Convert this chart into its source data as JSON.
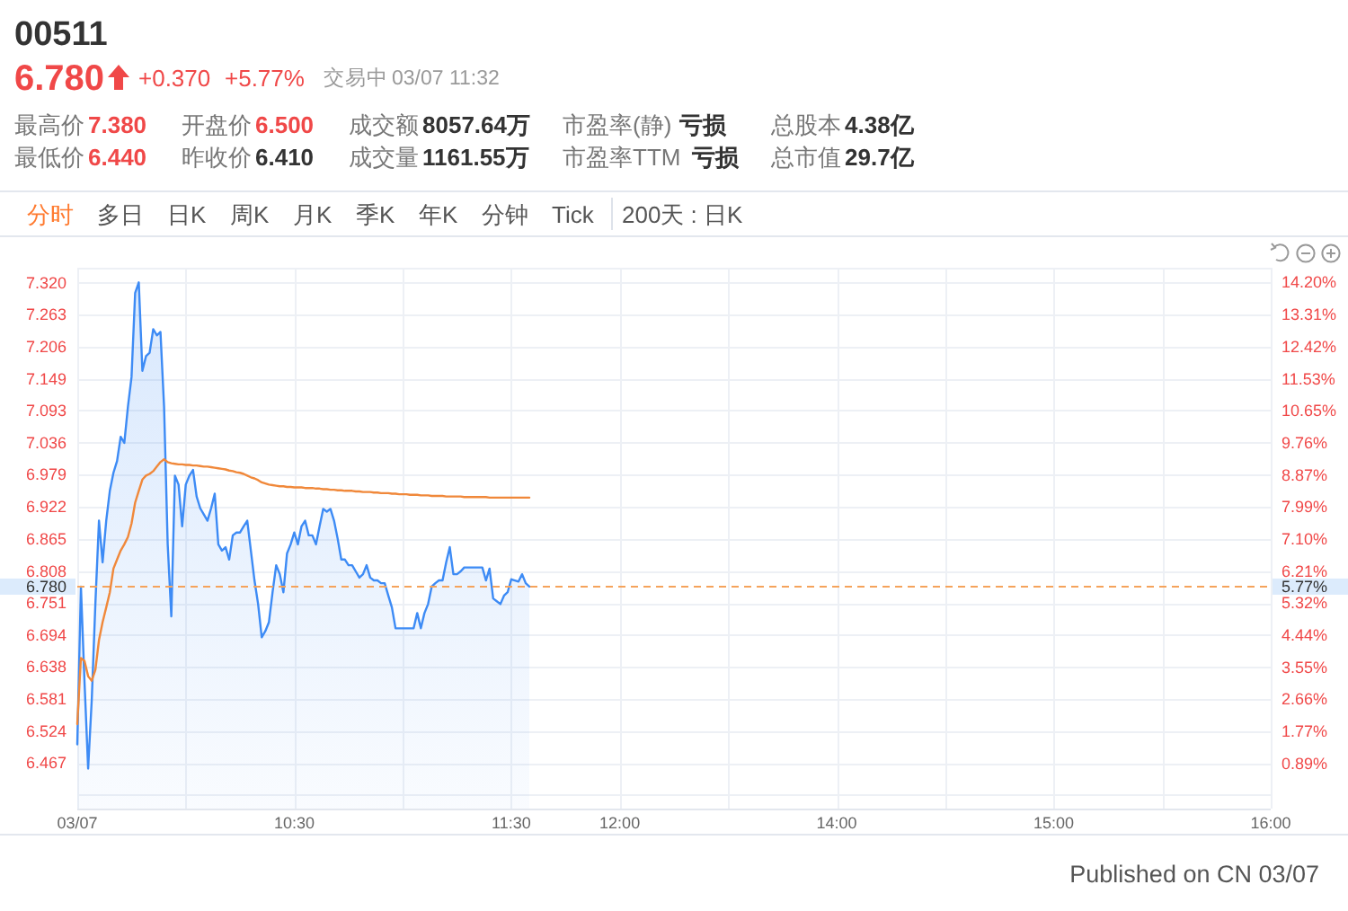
{
  "chart_data": {
    "type": "line",
    "title": "00511",
    "subtitle": "6.780",
    "annotations": [
      "+0.370",
      "+5.77%",
      "交易中",
      "03/07 11:32",
      "最高价",
      "7.380",
      "开盘价",
      "6.500",
      "成交额",
      "8057.64万",
      "市盈率(静)",
      "亏损",
      "总股本",
      "4.38亿",
      "最低价",
      "6.440",
      "昨收价",
      "6.410",
      "成交量",
      "1161.55万",
      "市盈率TTM",
      "亏损",
      "总市值",
      "29.7亿",
      "分时",
      "多日",
      "日K",
      "周K",
      "月K",
      "季K",
      "年K",
      "分钟",
      "Tick",
      "200天 : 日K",
      "Published on CN 03/07",
      "5.77%"
    ],
    "categories": [
      "03/07",
      null,
      null,
      null,
      null,
      null,
      null,
      null,
      null,
      null,
      null,
      null,
      null,
      null,
      null,
      null,
      null,
      null,
      null,
      null,
      null,
      null,
      null,
      null,
      null,
      null,
      null,
      null,
      null,
      null,
      null,
      null,
      null,
      null,
      null,
      null,
      null,
      null,
      null,
      null,
      null,
      null,
      null,
      null,
      null,
      null,
      null,
      null,
      null,
      null,
      null,
      null,
      null,
      null,
      null,
      null,
      null,
      null,
      null,
      null,
      "10:30",
      null,
      null,
      null,
      null,
      null,
      null,
      null,
      null,
      null,
      null,
      null,
      null,
      null,
      null,
      null,
      null,
      null,
      null,
      null,
      null,
      null,
      null,
      null,
      null,
      null,
      null,
      null,
      null,
      null,
      null,
      null,
      null,
      null,
      null,
      null,
      null,
      null,
      null,
      null,
      null,
      null,
      null,
      null,
      null,
      null,
      null,
      null,
      null,
      null,
      null,
      null,
      null,
      null,
      null,
      null,
      null,
      null,
      null,
      null,
      "11:30",
      null,
      null,
      null,
      null,
      null,
      null,
      null,
      null,
      null,
      null,
      null,
      null,
      null,
      null,
      null,
      null,
      null,
      null,
      null,
      null,
      null,
      null,
      null,
      null,
      null,
      null,
      null,
      null,
      null,
      "12:00",
      null,
      null,
      null,
      null,
      null,
      null,
      null,
      null,
      null,
      null,
      null,
      null,
      null,
      null,
      null,
      null,
      null,
      null,
      null,
      null,
      null,
      null,
      null,
      null,
      null,
      null,
      null,
      null,
      null,
      null,
      null,
      null,
      null,
      null,
      null,
      null,
      null,
      null,
      null,
      null,
      null,
      null,
      null,
      null,
      null,
      null,
      null,
      null,
      null,
      null,
      null,
      null,
      null,
      null,
      null,
      null,
      null,
      null,
      null,
      "14:00",
      null,
      null,
      null,
      null,
      null,
      null,
      null,
      null,
      null,
      null,
      null,
      null,
      null,
      null,
      null,
      null,
      null,
      null,
      null,
      null,
      null,
      null,
      null,
      null,
      null,
      null,
      null,
      null,
      null,
      null,
      null,
      null,
      null,
      null,
      null,
      null,
      null,
      null,
      null,
      null,
      null,
      null,
      null,
      null,
      null,
      null,
      null,
      null,
      null,
      null,
      null,
      null,
      null,
      null,
      null,
      null,
      null,
      null,
      null,
      "15:00",
      null,
      null,
      null,
      null,
      null,
      null,
      null,
      null,
      null,
      null,
      null,
      null,
      null,
      null,
      null,
      null,
      null,
      null,
      null,
      null,
      null,
      null,
      null,
      null,
      null,
      null,
      null,
      null,
      null,
      null,
      null,
      null,
      null,
      null,
      null,
      null,
      null,
      null,
      null,
      null,
      null,
      null,
      null,
      null,
      null,
      null,
      null,
      null,
      null,
      null,
      null,
      null,
      null,
      null,
      null,
      null,
      null,
      null,
      null,
      "16:00"
    ],
    "series": [
      {
        "type": "area",
        "color": "#3d8bf5",
        "values": [
          6.5,
          6.78,
          6.611,
          6.457,
          6.579,
          6.749,
          6.897,
          6.823,
          6.897,
          6.95,
          6.982,
          7.003,
          7.046,
          7.035,
          7.099,
          7.152,
          7.301,
          7.32,
          7.163,
          7.189,
          7.195,
          7.237,
          7.226,
          7.232,
          7.099,
          6.855,
          6.727,
          6.977,
          6.961,
          6.887,
          6.961,
          6.977,
          6.987,
          6.94,
          6.919,
          6.908,
          6.897,
          6.919,
          6.945,
          6.855,
          6.844,
          6.85,
          6.828,
          6.871,
          6.876,
          6.876,
          6.887,
          6.897,
          6.844,
          6.791,
          6.749,
          6.69,
          6.701,
          6.717,
          6.77,
          6.818,
          6.802,
          6.77,
          6.839,
          6.855,
          6.876,
          6.855,
          6.887,
          6.897,
          6.871,
          6.871,
          6.855,
          6.887,
          6.918,
          6.913,
          6.918,
          6.897,
          6.865,
          6.828,
          6.828,
          6.818,
          6.818,
          6.807,
          6.796,
          6.802,
          6.818,
          6.796,
          6.791,
          6.791,
          6.786,
          6.786,
          6.764,
          6.743,
          6.706,
          6.706,
          6.706,
          6.706,
          6.706,
          6.706,
          6.733,
          6.706,
          6.733,
          6.749,
          6.78,
          6.786,
          6.791,
          6.791,
          6.823,
          6.85,
          6.802,
          6.802,
          6.807,
          6.814,
          6.814,
          6.814,
          6.814,
          6.814,
          6.814,
          6.791,
          6.812,
          6.759,
          6.754,
          6.749,
          6.764,
          6.77,
          6.793,
          6.791,
          6.789,
          6.802,
          6.786,
          6.78,
          null,
          null,
          null,
          null,
          null,
          null,
          null,
          null,
          null,
          null,
          null,
          null,
          null,
          null,
          null,
          null,
          null,
          null,
          null,
          null,
          null,
          null,
          null,
          null,
          null,
          null,
          null,
          null,
          null,
          null,
          null,
          null,
          null,
          null,
          null,
          null,
          null,
          null,
          null,
          null,
          null,
          null,
          null,
          null,
          null,
          null,
          null,
          null,
          null,
          null,
          null,
          null,
          null,
          null,
          null,
          null,
          null,
          null,
          null,
          null,
          null,
          null,
          null,
          null,
          null,
          null,
          null,
          null,
          null,
          null,
          null,
          null,
          null,
          null,
          null,
          null,
          null,
          null,
          null,
          null,
          null,
          null,
          null,
          null,
          null,
          null,
          null,
          null,
          null,
          null,
          null,
          null,
          null,
          null,
          null,
          null,
          null,
          null,
          null,
          null,
          null,
          null,
          null,
          null,
          null,
          null,
          null,
          null,
          null,
          null,
          null,
          null,
          null,
          null,
          null,
          null,
          null,
          null,
          null,
          null,
          null,
          null,
          null,
          null,
          null,
          null,
          null,
          null,
          null,
          null,
          null,
          null,
          null,
          null,
          null,
          null,
          null,
          null,
          null,
          null,
          null,
          null,
          null,
          null,
          null,
          null,
          null,
          null,
          null,
          null,
          null,
          null,
          null,
          null,
          null,
          null,
          null,
          null,
          null,
          null,
          null,
          null,
          null,
          null,
          null,
          null,
          null,
          null,
          null,
          null,
          null,
          null,
          null,
          null,
          null,
          null,
          null,
          null,
          null,
          null,
          null,
          null,
          null,
          null,
          null,
          null,
          null,
          null,
          null,
          null,
          null,
          null,
          null,
          null,
          null,
          null,
          null,
          null,
          null,
          null,
          null,
          null,
          null,
          null,
          null
        ]
      },
      {
        "color": "#f0883a",
        "values": [
          6.536,
          6.653,
          6.648,
          6.621,
          6.613,
          6.632,
          6.685,
          6.717,
          6.743,
          6.77,
          6.812,
          6.828,
          6.844,
          6.855,
          6.868,
          6.892,
          6.929,
          6.95,
          6.97,
          6.977,
          6.98,
          6.985,
          6.993,
          7.001,
          7.006,
          7.001,
          6.999,
          6.998,
          6.997,
          6.997,
          6.996,
          6.996,
          6.995,
          6.995,
          6.994,
          6.993,
          6.993,
          6.992,
          6.991,
          6.99,
          6.989,
          6.988,
          6.986,
          6.985,
          6.983,
          6.982,
          6.98,
          6.977,
          6.974,
          6.972,
          6.969,
          6.965,
          6.963,
          6.961,
          6.96,
          6.959,
          6.958,
          6.958,
          6.957,
          6.957,
          6.956,
          6.956,
          6.956,
          6.955,
          6.955,
          6.955,
          6.954,
          6.954,
          6.953,
          6.953,
          6.952,
          6.952,
          6.951,
          6.951,
          6.95,
          6.95,
          6.95,
          6.949,
          6.949,
          6.948,
          6.948,
          6.948,
          6.947,
          6.947,
          6.946,
          6.946,
          6.946,
          6.945,
          6.945,
          6.944,
          6.944,
          6.944,
          6.943,
          6.943,
          6.943,
          6.942,
          6.942,
          6.942,
          6.941,
          6.941,
          6.941,
          6.941,
          6.94,
          6.94,
          6.94,
          6.94,
          6.94,
          6.939,
          6.939,
          6.939,
          6.939,
          6.939,
          6.939,
          6.939,
          6.938,
          6.938,
          6.938,
          6.938,
          6.938,
          6.938,
          6.938,
          6.938,
          6.938,
          6.938,
          6.938,
          6.938,
          null,
          null,
          null,
          null,
          null,
          null,
          null,
          null,
          null,
          null,
          null,
          null,
          null,
          null,
          null,
          null,
          null,
          null,
          null,
          null,
          null,
          null,
          null,
          null,
          null,
          null,
          null,
          null,
          null,
          null,
          null,
          null,
          null,
          null,
          null,
          null,
          null,
          null,
          null,
          null,
          null,
          null,
          null,
          null,
          null,
          null,
          null,
          null,
          null,
          null,
          null,
          null,
          null,
          null,
          null,
          null,
          null,
          null,
          null,
          null,
          null,
          null,
          null,
          null,
          null,
          null,
          null,
          null,
          null,
          null,
          null,
          null,
          null,
          null,
          null,
          null,
          null,
          null,
          null,
          null,
          null,
          null,
          null,
          null,
          null,
          null,
          null,
          null,
          null,
          null,
          null,
          null,
          null,
          null,
          null,
          null,
          null,
          null,
          null,
          null,
          null,
          null,
          null,
          null,
          null,
          null,
          null,
          null,
          null,
          null,
          null,
          null,
          null,
          null,
          null,
          null,
          null,
          null,
          null,
          null,
          null,
          null,
          null,
          null,
          null,
          null,
          null,
          null,
          null,
          null,
          null,
          null,
          null,
          null,
          null,
          null,
          null,
          null,
          null,
          null,
          null,
          null,
          null,
          null,
          null,
          null,
          null,
          null,
          null,
          null,
          null,
          null,
          null,
          null,
          null,
          null,
          null,
          null,
          null,
          null,
          null,
          null,
          null,
          null,
          null,
          null,
          null,
          null,
          null,
          null,
          null,
          null,
          null,
          null,
          null,
          null,
          null,
          null,
          null,
          null,
          null,
          null,
          null,
          null,
          null,
          null,
          null,
          null,
          null,
          null,
          null,
          null,
          null,
          null,
          null,
          null,
          null,
          null,
          null,
          null,
          null,
          null,
          null,
          null,
          null
        ]
      }
    ],
    "ylim": [
      6.386,
      7.346
    ],
    "yticks": [
      {
        "value": 6.41,
        "label": null
      },
      6.467,
      6.524,
      6.581,
      6.638,
      6.694,
      6.751,
      6.808,
      6.865,
      6.922,
      6.979,
      7.036,
      7.093,
      7.149,
      7.206,
      7.263,
      {
        "value": 7.32,
        "label": "7.320"
      }
    ],
    "y2lim": [
      -0.37,
      14.6
    ],
    "y2ticks": [
      {
        "value": 0.89,
        "label": "0.89%"
      },
      {
        "value": 1.77,
        "label": "1.77%"
      },
      {
        "value": 2.66,
        "label": "2.66%"
      },
      {
        "value": 3.55,
        "label": "3.55%"
      },
      {
        "value": 4.44,
        "label": "4.44%"
      },
      {
        "value": 5.32,
        "label": "5.32%"
      },
      {
        "value": 6.21,
        "label": "6.21%"
      },
      {
        "value": 7.1,
        "label": "7.10%"
      },
      {
        "value": 7.99,
        "label": "7.99%"
      },
      {
        "value": 8.87,
        "label": "8.87%"
      },
      {
        "value": 9.76,
        "label": "9.76%"
      },
      {
        "value": 10.65,
        "label": "10.65%"
      },
      {
        "value": 11.53,
        "label": "11.53%"
      },
      {
        "value": 12.42,
        "label": "12.42%"
      },
      {
        "value": 13.31,
        "label": "13.31%"
      },
      {
        "value": 14.2,
        "label": "14.20%"
      }
    ],
    "grid": true,
    "ref_lines": [
      {
        "axis": "y",
        "value": 6.78,
        "label": "6.780",
        "color": "#f5a35b",
        "line_style": "dashed"
      }
    ]
  }
}
